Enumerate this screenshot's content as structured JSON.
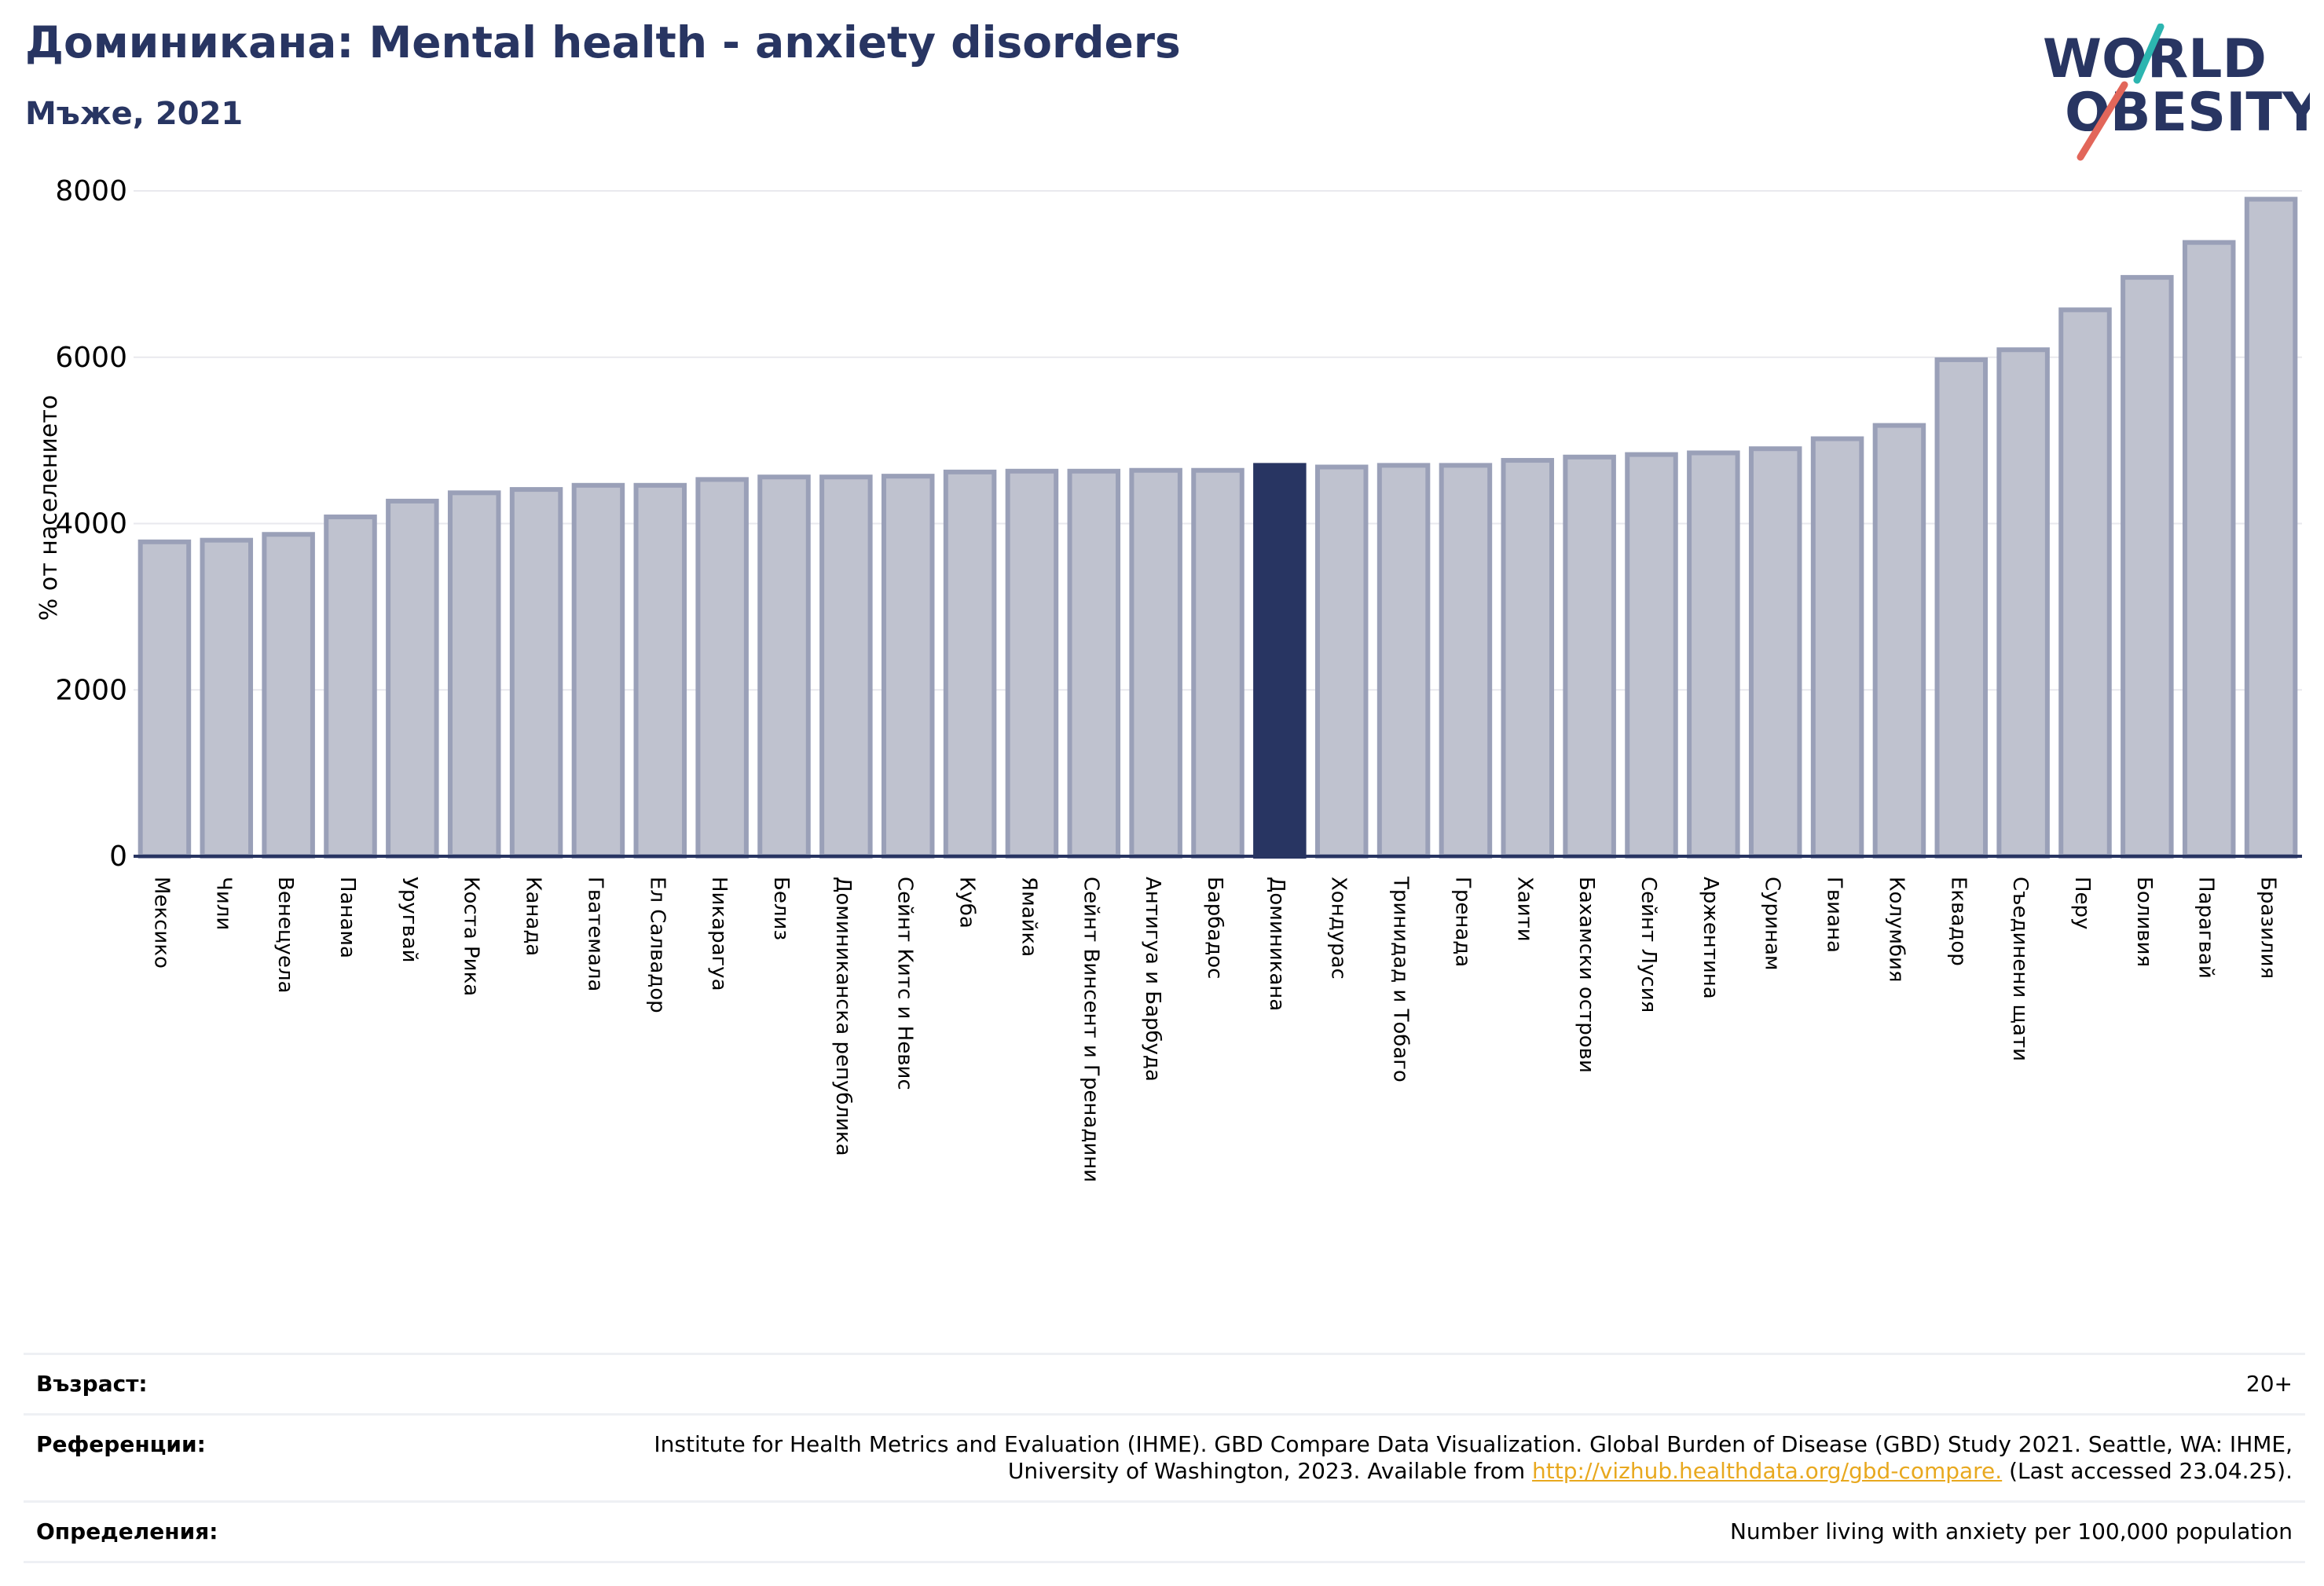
{
  "header": {
    "title": "Доминикана: Mental health - anxiety disorders",
    "subtitle": "Мъже, 2021"
  },
  "logo": {
    "line1": "WORLD",
    "line2": "OBESITY"
  },
  "colors": {
    "highlight": "#283562",
    "bar": "#bfc2cf",
    "bar_edge": "#9aa0b8",
    "axis": "#283562",
    "grid": "#e9e9ee",
    "link": "#e8a81e"
  },
  "chart_data": {
    "type": "bar",
    "title": "Доминикана: Mental health - anxiety disorders",
    "subtitle": "Мъже, 2021",
    "ylabel": "% от населението",
    "xlabel": "",
    "ylim": [
      0,
      8000
    ],
    "yticks": [
      0,
      2000,
      4000,
      6000,
      8000
    ],
    "grid": true,
    "highlight": "Доминикана",
    "categories": [
      "Мексико",
      "Чили",
      "Венецуела",
      "Панама",
      "Уругвай",
      "Коста Рика",
      "Канада",
      "Гватемала",
      "Ел Салвадор",
      "Никарагуа",
      "Белиз",
      "Доминиканска република",
      "Сейнт Китс и Невис",
      "Куба",
      "Ямайка",
      "Сейнт Винсент и Гренадини",
      "Антигуа и Барбуда",
      "Барбадос",
      "Доминикана",
      "Хондурас",
      "Тринидад и Тобаго",
      "Гренада",
      "Хаити",
      "Бахамски острови",
      "Сейнт Лусия",
      "Аржентина",
      "Суринам",
      "Гвиана",
      "Колумбия",
      "Еквадор",
      "Съединени щати",
      "Перу",
      "Боливия",
      "Парагвай",
      "Бразилия"
    ],
    "values": [
      3780,
      3800,
      3870,
      4080,
      4270,
      4370,
      4410,
      4460,
      4460,
      4530,
      4560,
      4560,
      4570,
      4620,
      4630,
      4630,
      4640,
      4640,
      4700,
      4680,
      4700,
      4700,
      4760,
      4800,
      4830,
      4850,
      4900,
      5020,
      5180,
      5970,
      6090,
      6570,
      6960,
      7380,
      7900
    ]
  },
  "info": {
    "age_label": "Възраст:",
    "age_value": "20+",
    "refs_label": "Референции:",
    "refs_text": "Institute for Health Metrics and Evaluation (IHME). GBD Compare Data Visualization. Global Burden of Disease (GBD) Study 2021. Seattle, WA: IHME, University of Washington, 2023. Available from ",
    "refs_link": "http://vizhub.healthdata.org/gbd-compare.",
    "refs_suffix": " (Last accessed 23.04.25).",
    "defs_label": "Определения:",
    "defs_value": "Number living with anxiety per 100,000 population"
  }
}
